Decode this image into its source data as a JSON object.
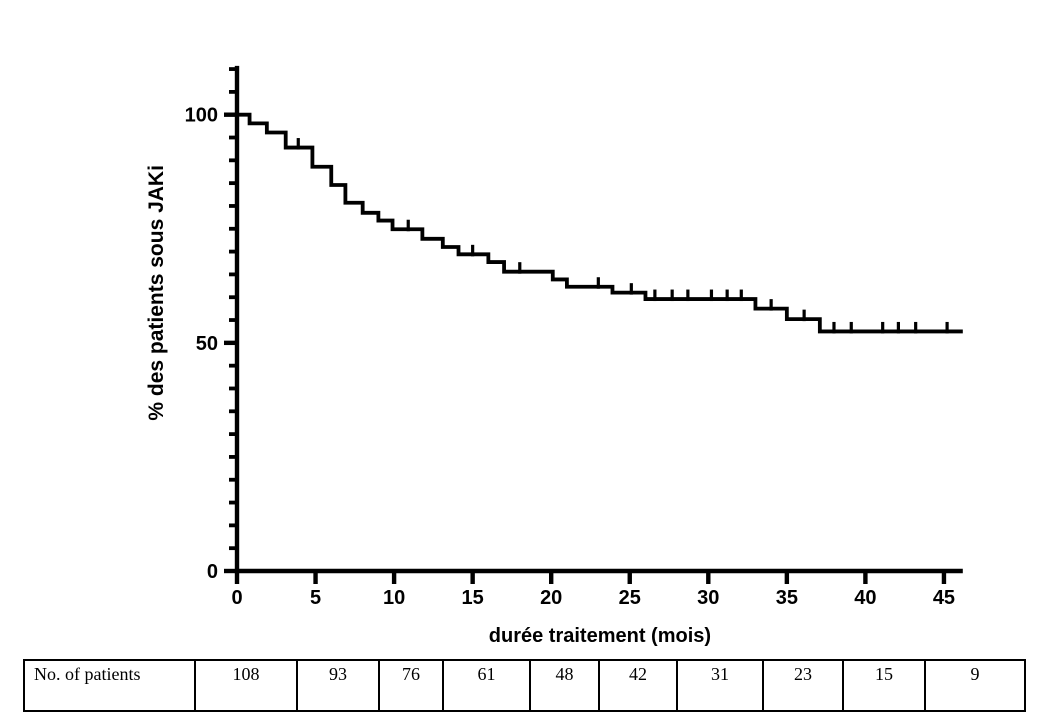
{
  "chart_data": {
    "type": "line",
    "variant": "kaplan_meier_step",
    "title": "",
    "xlabel": "durée traitement (mois)",
    "ylabel": "% des patients sous JAKi",
    "xlim": [
      0,
      46.2
    ],
    "ylim": [
      0,
      110.7
    ],
    "x_ticks": [
      0,
      5,
      10,
      15,
      20,
      25,
      30,
      35,
      40,
      45
    ],
    "y_major_ticks": [
      0,
      50,
      100
    ],
    "y_minor_tick_step": 5,
    "y_minor_tick_max": 110,
    "grid": false,
    "legend_position": "none",
    "axis_color": "#000000",
    "curve_color": "#000000",
    "series": [
      {
        "name": "% des patients sous JAKi",
        "steps_time_percent": [
          [
            0,
            100
          ],
          [
            0.8,
            98.1
          ],
          [
            1.9,
            96.1
          ],
          [
            3.1,
            92.8
          ],
          [
            4.8,
            88.6
          ],
          [
            6.0,
            84.6
          ],
          [
            6.9,
            80.7
          ],
          [
            8.0,
            78.5
          ],
          [
            9.0,
            76.8
          ],
          [
            9.9,
            74.9
          ],
          [
            11.8,
            72.8
          ],
          [
            13.1,
            71.0
          ],
          [
            14.1,
            69.4
          ],
          [
            16.0,
            67.7
          ],
          [
            17.0,
            65.6
          ],
          [
            20.1,
            63.9
          ],
          [
            21.0,
            62.3
          ],
          [
            23.9,
            61.0
          ],
          [
            26.0,
            59.6
          ],
          [
            33.0,
            57.5
          ],
          [
            35.0,
            55.2
          ],
          [
            37.1,
            52.5
          ]
        ],
        "curve_end_time": 46.2,
        "censor_marks_time_percent": [
          [
            3.9,
            92.8
          ],
          [
            10.9,
            74.9
          ],
          [
            15.0,
            69.4
          ],
          [
            18.0,
            65.6
          ],
          [
            23.0,
            62.3
          ],
          [
            25.1,
            61.0
          ],
          [
            26.6,
            59.6
          ],
          [
            27.7,
            59.6
          ],
          [
            28.7,
            59.6
          ],
          [
            30.2,
            59.6
          ],
          [
            31.2,
            59.6
          ],
          [
            32.1,
            59.6
          ],
          [
            34.0,
            57.5
          ],
          [
            36.1,
            55.2
          ],
          [
            38.0,
            52.5
          ],
          [
            39.1,
            52.5
          ],
          [
            41.1,
            52.5
          ],
          [
            42.1,
            52.5
          ],
          [
            43.2,
            52.5
          ],
          [
            45.2,
            52.5
          ]
        ]
      }
    ],
    "at_risk_table": {
      "row_label": "No. of patients",
      "values": [
        "108",
        "93",
        "76",
        "61",
        "48",
        "42",
        "31",
        "23",
        "15",
        "9"
      ]
    }
  }
}
